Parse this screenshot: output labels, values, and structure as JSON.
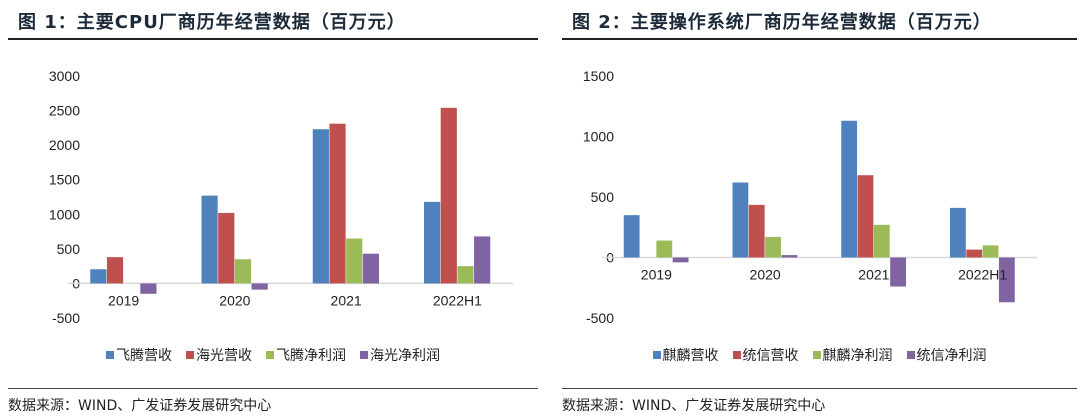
{
  "figures": [
    {
      "title": "图 1：主要CPU厂商历年经营数据（百万元）",
      "source": "数据来源：WIND、广发证券发展研究中心"
    },
    {
      "title": "图 2：主要操作系统厂商历年经营数据（百万元）",
      "source": "数据来源：WIND、广发证券发展研究中心"
    }
  ],
  "colors": {
    "blue": "#4f81bd",
    "red": "#c0504d",
    "green": "#9bbb59",
    "purple": "#8064a2",
    "axis": "#d9d9d9"
  },
  "chart_data": [
    {
      "type": "bar",
      "title": "主要CPU厂商历年经营数据（百万元）",
      "xlabel": "",
      "ylabel": "",
      "categories": [
        "2019",
        "2020",
        "2021",
        "2022H1"
      ],
      "yticks": [
        3000,
        2500,
        2000,
        1500,
        1000,
        500,
        0,
        -500
      ],
      "ytick_labels": [
        "3000",
        "2500",
        "2000",
        "1500",
        "1000",
        "500",
        "0",
        "-500"
      ],
      "ylim": [
        -500,
        3000
      ],
      "grid": false,
      "legend_position": "bottom",
      "series": [
        {
          "name": "飞腾营收",
          "color": "#4f81bd",
          "values": [
            205,
            1270,
            2230,
            1180
          ]
        },
        {
          "name": "海光营收",
          "color": "#c0504d",
          "values": [
            380,
            1020,
            2310,
            2540
          ]
        },
        {
          "name": "飞腾净利润",
          "color": "#9bbb59",
          "values": [
            0,
            350,
            650,
            250
          ]
        },
        {
          "name": "海光净利润",
          "color": "#8064a2",
          "values": [
            -150,
            -90,
            430,
            680
          ]
        }
      ]
    },
    {
      "type": "bar",
      "title": "主要操作系统厂商历年经营数据（百万元）",
      "xlabel": "",
      "ylabel": "",
      "categories": [
        "2019",
        "2020",
        "2021",
        "2022H1"
      ],
      "yticks": [
        1500,
        1000,
        500,
        0,
        -500
      ],
      "ytick_labels": [
        "1500",
        "1000",
        "500",
        "0",
        "-500"
      ],
      "ylim": [
        -500,
        1500
      ],
      "grid": false,
      "legend_position": "bottom",
      "series": [
        {
          "name": "麒麟营收",
          "color": "#4f81bd",
          "values": [
            350,
            620,
            1130,
            410
          ]
        },
        {
          "name": "统信营收",
          "color": "#c0504d",
          "values": [
            0,
            435,
            680,
            65
          ]
        },
        {
          "name": "麒麟净利润",
          "color": "#9bbb59",
          "values": [
            140,
            170,
            270,
            100
          ]
        },
        {
          "name": "统信净利润",
          "color": "#8064a2",
          "values": [
            -40,
            20,
            -240,
            -370
          ]
        }
      ]
    }
  ]
}
